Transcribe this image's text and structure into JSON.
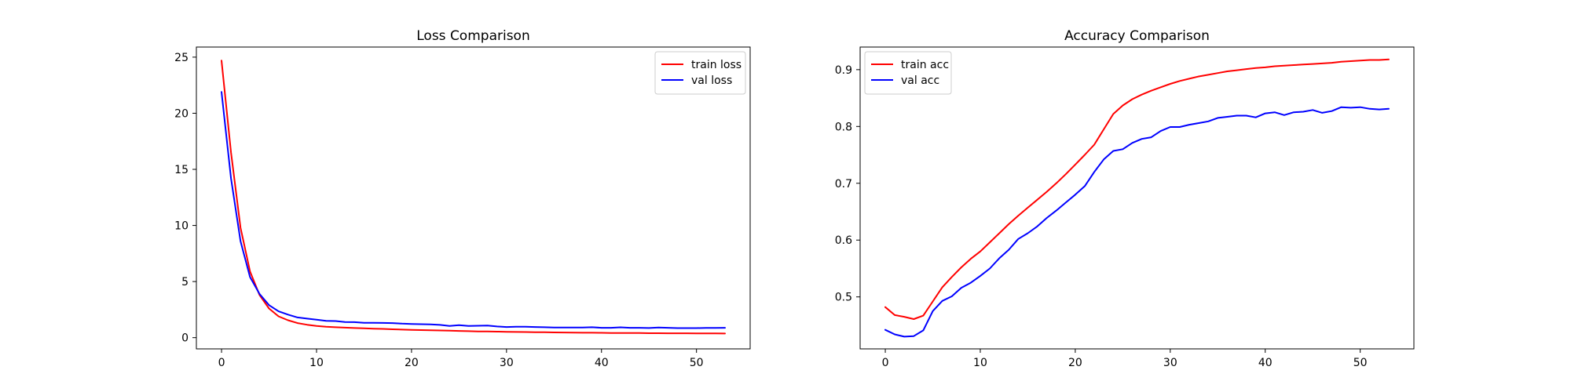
{
  "chart_data": [
    {
      "type": "line",
      "title": "Loss Comparison",
      "xlabel": "",
      "ylabel": "",
      "xlim": [
        -2.65,
        55.65
      ],
      "ylim": [
        -1.0,
        25.9
      ],
      "xticks": [
        0,
        10,
        20,
        30,
        40,
        50
      ],
      "yticks": [
        0,
        5,
        10,
        15,
        20,
        25
      ],
      "grid": false,
      "legend_position": "top-right",
      "series": [
        {
          "name": "train loss",
          "color": "#ff0000",
          "x": [
            0,
            1,
            2,
            3,
            4,
            5,
            6,
            7,
            8,
            9,
            10,
            11,
            12,
            13,
            14,
            15,
            16,
            17,
            18,
            19,
            20,
            21,
            22,
            23,
            24,
            25,
            26,
            27,
            28,
            29,
            30,
            31,
            32,
            33,
            34,
            35,
            36,
            37,
            38,
            39,
            40,
            41,
            42,
            43,
            44,
            45,
            46,
            47,
            48,
            49,
            50,
            51,
            52,
            53
          ],
          "values": [
            24.7,
            16.5,
            9.8,
            5.9,
            3.8,
            2.6,
            1.9,
            1.55,
            1.3,
            1.15,
            1.05,
            0.98,
            0.93,
            0.89,
            0.86,
            0.83,
            0.8,
            0.78,
            0.75,
            0.72,
            0.7,
            0.68,
            0.66,
            0.64,
            0.62,
            0.6,
            0.58,
            0.56,
            0.55,
            0.54,
            0.52,
            0.51,
            0.5,
            0.49,
            0.48,
            0.47,
            0.46,
            0.45,
            0.44,
            0.44,
            0.43,
            0.42,
            0.42,
            0.41,
            0.41,
            0.4,
            0.4,
            0.39,
            0.39,
            0.39,
            0.38,
            0.38,
            0.38,
            0.37
          ]
        },
        {
          "name": "val loss",
          "color": "#0000ff",
          "x": [
            0,
            1,
            2,
            3,
            4,
            5,
            6,
            7,
            8,
            9,
            10,
            11,
            12,
            13,
            14,
            15,
            16,
            17,
            18,
            19,
            20,
            21,
            22,
            23,
            24,
            25,
            26,
            27,
            28,
            29,
            30,
            31,
            32,
            33,
            34,
            35,
            36,
            37,
            38,
            39,
            40,
            41,
            42,
            43,
            44,
            45,
            46,
            47,
            48,
            49,
            50,
            51,
            52,
            53
          ],
          "values": [
            21.9,
            14.2,
            8.6,
            5.4,
            3.9,
            2.9,
            2.35,
            2.05,
            1.8,
            1.7,
            1.6,
            1.5,
            1.48,
            1.4,
            1.38,
            1.33,
            1.32,
            1.31,
            1.3,
            1.25,
            1.22,
            1.2,
            1.18,
            1.14,
            1.05,
            1.12,
            1.05,
            1.06,
            1.08,
            1.0,
            0.95,
            0.98,
            0.98,
            0.95,
            0.93,
            0.9,
            0.9,
            0.9,
            0.9,
            0.93,
            0.88,
            0.88,
            0.92,
            0.88,
            0.88,
            0.86,
            0.9,
            0.88,
            0.85,
            0.85,
            0.85,
            0.87,
            0.87,
            0.88
          ]
        }
      ]
    },
    {
      "type": "line",
      "title": "Accuracy Comparison",
      "xlabel": "",
      "ylabel": "",
      "xlim": [
        -2.65,
        55.65
      ],
      "ylim": [
        0.4085,
        0.9398
      ],
      "xticks": [
        0,
        10,
        20,
        30,
        40,
        50
      ],
      "yticks": [
        0.5,
        0.6,
        0.7,
        0.8,
        0.9
      ],
      "grid": false,
      "legend_position": "top-left",
      "series": [
        {
          "name": "train acc",
          "color": "#ff0000",
          "x": [
            0,
            1,
            2,
            3,
            4,
            5,
            6,
            7,
            8,
            9,
            10,
            11,
            12,
            13,
            14,
            15,
            16,
            17,
            18,
            19,
            20,
            21,
            22,
            23,
            24,
            25,
            26,
            27,
            28,
            29,
            30,
            31,
            32,
            33,
            34,
            35,
            36,
            37,
            38,
            39,
            40,
            41,
            42,
            43,
            44,
            45,
            46,
            47,
            48,
            49,
            50,
            51,
            52,
            53
          ],
          "values": [
            0.482,
            0.468,
            0.465,
            0.461,
            0.467,
            0.492,
            0.517,
            0.535,
            0.552,
            0.567,
            0.58,
            0.596,
            0.612,
            0.628,
            0.643,
            0.657,
            0.671,
            0.685,
            0.7,
            0.716,
            0.733,
            0.75,
            0.768,
            0.795,
            0.822,
            0.837,
            0.848,
            0.856,
            0.863,
            0.869,
            0.875,
            0.88,
            0.884,
            0.888,
            0.891,
            0.894,
            0.897,
            0.899,
            0.901,
            0.903,
            0.904,
            0.906,
            0.907,
            0.908,
            0.909,
            0.91,
            0.911,
            0.912,
            0.914,
            0.915,
            0.916,
            0.917,
            0.917,
            0.918
          ]
        },
        {
          "name": "val acc",
          "color": "#0000ff",
          "x": [
            0,
            1,
            2,
            3,
            4,
            5,
            6,
            7,
            8,
            9,
            10,
            11,
            12,
            13,
            14,
            15,
            16,
            17,
            18,
            19,
            20,
            21,
            22,
            23,
            24,
            25,
            26,
            27,
            28,
            29,
            30,
            31,
            32,
            33,
            34,
            35,
            36,
            37,
            38,
            39,
            40,
            41,
            42,
            43,
            44,
            45,
            46,
            47,
            48,
            49,
            50,
            51,
            52,
            53
          ],
          "values": [
            0.442,
            0.434,
            0.43,
            0.431,
            0.441,
            0.475,
            0.493,
            0.501,
            0.516,
            0.525,
            0.537,
            0.55,
            0.568,
            0.583,
            0.602,
            0.612,
            0.624,
            0.639,
            0.652,
            0.666,
            0.68,
            0.695,
            0.72,
            0.742,
            0.757,
            0.76,
            0.771,
            0.778,
            0.781,
            0.792,
            0.799,
            0.799,
            0.803,
            0.806,
            0.809,
            0.815,
            0.817,
            0.819,
            0.819,
            0.816,
            0.823,
            0.825,
            0.82,
            0.825,
            0.826,
            0.829,
            0.824,
            0.827,
            0.834,
            0.833,
            0.834,
            0.831,
            0.83,
            0.831
          ]
        }
      ]
    }
  ]
}
